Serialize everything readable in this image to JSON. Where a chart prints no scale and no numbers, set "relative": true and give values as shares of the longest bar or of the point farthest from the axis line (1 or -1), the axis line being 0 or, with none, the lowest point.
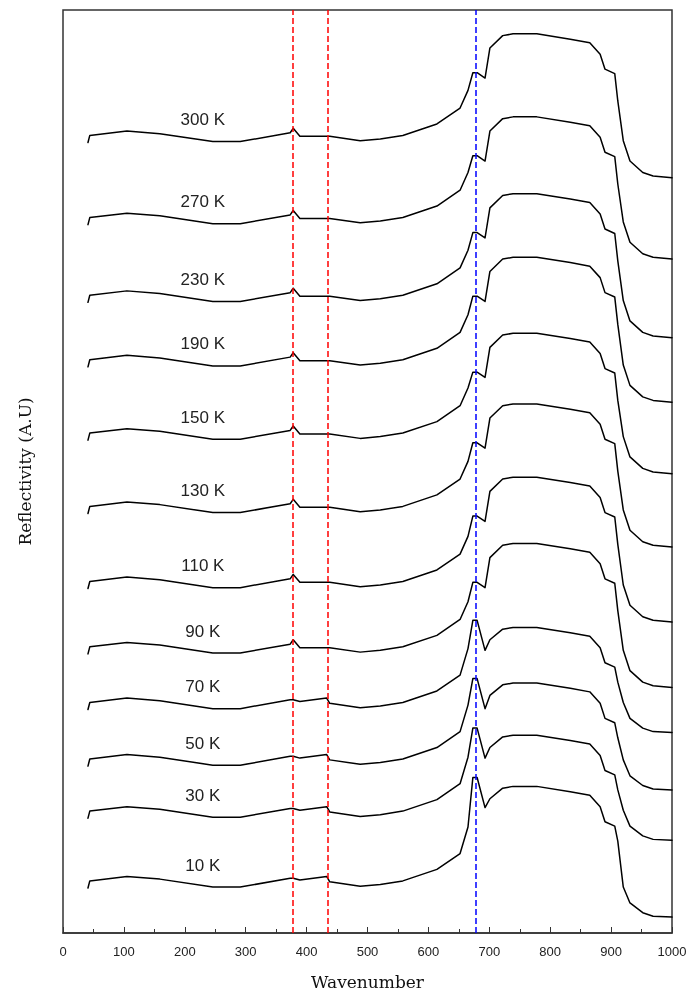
{
  "chart_data": {
    "type": "line",
    "relative": true,
    "xlabel": "Wavenumber",
    "ylabel": "Reflectivity (A.U)",
    "xlim": [
      0,
      1000
    ],
    "xticks": [
      0,
      100,
      200,
      300,
      400,
      500,
      600,
      700,
      800,
      900,
      1000
    ],
    "grid": false,
    "legend": false,
    "marker": "none",
    "line_style": "solid",
    "x": [
      41,
      44,
      105,
      159,
      246,
      291,
      373,
      378,
      389,
      433,
      438,
      488,
      521,
      558,
      614,
      652,
      665,
      673,
      680,
      693,
      701,
      722,
      739,
      778,
      833,
      865,
      882,
      890,
      906,
      911,
      920,
      931,
      952,
      969,
      1000
    ],
    "series": [
      {
        "name": "300 K",
        "color": "#000000",
        "values": [
          0.877,
          0.885,
          0.89,
          0.887,
          0.878,
          0.878,
          0.888,
          0.893,
          0.884,
          0.884,
          0.884,
          0.879,
          0.881,
          0.885,
          0.898,
          0.916,
          0.936,
          0.956,
          0.956,
          0.95,
          0.984,
          0.998,
          1,
          1,
          0.994,
          0.99,
          0.977,
          0.96,
          0.955,
          0.924,
          0.879,
          0.856,
          0.843,
          0.839,
          0.837
        ]
      },
      {
        "name": "270 K",
        "color": "#000000",
        "values": [
          0.784,
          0.792,
          0.797,
          0.794,
          0.785,
          0.785,
          0.795,
          0.8,
          0.791,
          0.791,
          0.791,
          0.786,
          0.788,
          0.792,
          0.805,
          0.823,
          0.843,
          0.862,
          0.862,
          0.856,
          0.89,
          0.904,
          0.906,
          0.906,
          0.9,
          0.896,
          0.883,
          0.866,
          0.861,
          0.83,
          0.787,
          0.764,
          0.751,
          0.747,
          0.745
        ]
      },
      {
        "name": "230 K",
        "color": "#000000",
        "values": [
          0.696,
          0.704,
          0.709,
          0.706,
          0.697,
          0.697,
          0.707,
          0.712,
          0.703,
          0.703,
          0.703,
          0.698,
          0.7,
          0.704,
          0.717,
          0.735,
          0.755,
          0.775,
          0.775,
          0.769,
          0.803,
          0.817,
          0.819,
          0.819,
          0.813,
          0.809,
          0.796,
          0.779,
          0.774,
          0.743,
          0.698,
          0.675,
          0.662,
          0.658,
          0.656
        ]
      },
      {
        "name": "190 K",
        "color": "#000000",
        "values": [
          0.623,
          0.631,
          0.636,
          0.633,
          0.624,
          0.624,
          0.634,
          0.639,
          0.63,
          0.63,
          0.63,
          0.625,
          0.627,
          0.631,
          0.644,
          0.662,
          0.682,
          0.703,
          0.703,
          0.697,
          0.731,
          0.745,
          0.747,
          0.747,
          0.741,
          0.737,
          0.724,
          0.707,
          0.702,
          0.671,
          0.625,
          0.602,
          0.589,
          0.585,
          0.583
        ]
      },
      {
        "name": "150 K",
        "color": "#000000",
        "values": [
          0.54,
          0.548,
          0.553,
          0.55,
          0.541,
          0.541,
          0.551,
          0.556,
          0.547,
          0.547,
          0.547,
          0.542,
          0.544,
          0.548,
          0.561,
          0.579,
          0.599,
          0.617,
          0.617,
          0.611,
          0.645,
          0.659,
          0.661,
          0.661,
          0.655,
          0.651,
          0.638,
          0.621,
          0.616,
          0.585,
          0.544,
          0.521,
          0.508,
          0.504,
          0.502
        ]
      },
      {
        "name": "130 K",
        "color": "#000000",
        "values": [
          0.457,
          0.465,
          0.47,
          0.467,
          0.458,
          0.458,
          0.468,
          0.473,
          0.464,
          0.464,
          0.464,
          0.459,
          0.461,
          0.465,
          0.478,
          0.496,
          0.516,
          0.537,
          0.537,
          0.531,
          0.565,
          0.579,
          0.581,
          0.581,
          0.575,
          0.571,
          0.558,
          0.541,
          0.536,
          0.505,
          0.461,
          0.438,
          0.425,
          0.421,
          0.419
        ]
      },
      {
        "name": "110 K",
        "color": "#000000",
        "values": [
          0.372,
          0.38,
          0.385,
          0.382,
          0.373,
          0.373,
          0.383,
          0.388,
          0.379,
          0.379,
          0.379,
          0.374,
          0.376,
          0.38,
          0.393,
          0.411,
          0.431,
          0.454,
          0.454,
          0.448,
          0.482,
          0.496,
          0.498,
          0.498,
          0.492,
          0.488,
          0.475,
          0.458,
          0.453,
          0.422,
          0.376,
          0.353,
          0.34,
          0.336,
          0.334
        ]
      },
      {
        "name": "90 K",
        "color": "#000000",
        "values": [
          0.298,
          0.306,
          0.311,
          0.308,
          0.299,
          0.299,
          0.309,
          0.314,
          0.305,
          0.305,
          0.305,
          0.3,
          0.302,
          0.306,
          0.319,
          0.337,
          0.357,
          0.379,
          0.379,
          0.373,
          0.407,
          0.421,
          0.423,
          0.423,
          0.417,
          0.413,
          0.4,
          0.383,
          0.378,
          0.347,
          0.302,
          0.279,
          0.266,
          0.262,
          0.26
        ]
      },
      {
        "name": "70 K",
        "color": "#000000",
        "values": [
          0.235,
          0.243,
          0.248,
          0.245,
          0.236,
          0.236,
          0.246,
          0.246,
          0.244,
          0.248,
          0.242,
          0.237,
          0.239,
          0.243,
          0.256,
          0.274,
          0.304,
          0.336,
          0.336,
          0.302,
          0.314,
          0.326,
          0.328,
          0.328,
          0.322,
          0.318,
          0.305,
          0.288,
          0.283,
          0.266,
          0.243,
          0.225,
          0.214,
          0.21,
          0.209
        ]
      },
      {
        "name": "50 K",
        "color": "#000000",
        "values": [
          0.171,
          0.179,
          0.184,
          0.181,
          0.172,
          0.172,
          0.182,
          0.182,
          0.18,
          0.184,
          0.178,
          0.173,
          0.175,
          0.179,
          0.192,
          0.21,
          0.24,
          0.27,
          0.27,
          0.236,
          0.251,
          0.263,
          0.265,
          0.265,
          0.259,
          0.255,
          0.242,
          0.225,
          0.22,
          0.203,
          0.178,
          0.16,
          0.149,
          0.145,
          0.144
        ]
      },
      {
        "name": "30 K",
        "color": "#000000",
        "values": [
          0.112,
          0.12,
          0.125,
          0.122,
          0.113,
          0.113,
          0.123,
          0.123,
          0.121,
          0.125,
          0.119,
          0.114,
          0.116,
          0.12,
          0.133,
          0.151,
          0.181,
          0.214,
          0.214,
          0.18,
          0.192,
          0.204,
          0.206,
          0.206,
          0.2,
          0.196,
          0.183,
          0.166,
          0.161,
          0.144,
          0.121,
          0.103,
          0.092,
          0.088,
          0.087
        ]
      },
      {
        "name": "10 K",
        "color": "#000000",
        "values": [
          0.033,
          0.041,
          0.046,
          0.043,
          0.034,
          0.034,
          0.044,
          0.044,
          0.042,
          0.046,
          0.04,
          0.035,
          0.037,
          0.041,
          0.054,
          0.072,
          0.102,
          0.158,
          0.158,
          0.124,
          0.134,
          0.146,
          0.148,
          0.148,
          0.142,
          0.138,
          0.125,
          0.108,
          0.103,
          0.086,
          0.034,
          0.016,
          0.005,
          0.001,
          0
        ]
      }
    ],
    "ref_lines": [
      {
        "axis": "x",
        "value": 378,
        "color": "#ff0000",
        "line_style": "dashed"
      },
      {
        "axis": "x",
        "value": 434,
        "color": "#ff0000",
        "line_style": "dashed"
      },
      {
        "axis": "x",
        "value": 678,
        "color": "#0000ff",
        "line_style": "dashed"
      }
    ]
  }
}
